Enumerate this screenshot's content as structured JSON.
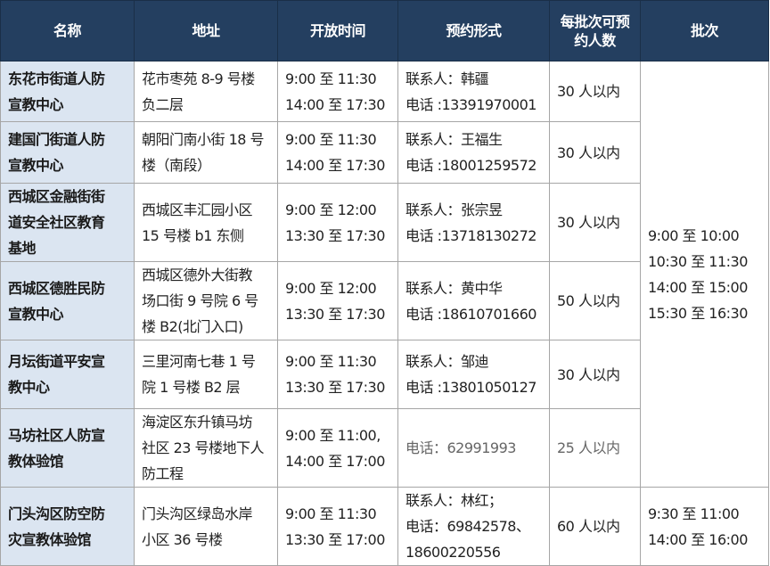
{
  "headers": [
    "名称",
    "地址",
    "开放时间",
    "预约形式",
    "每批次可预\n约人数",
    "批次"
  ],
  "rows": [
    {
      "name": "东花市街道人防\n宣教中心",
      "address": "花市枣苑 8-9 号楼\n负二层",
      "hours": "9:00 至 11:30\n14:00 至 17:30",
      "booking": "联系人：韩疆\n电话 :13391970001",
      "capacity": "30 人以内"
    },
    {
      "name": "建国门街道人防\n宣教中心",
      "address": "朝阳门南小街 18 号\n楼（南段）",
      "hours": "9:00 至 11:30\n14:00 至 17:30",
      "booking": "联系人：王福生\n电话 :18001259572",
      "capacity": "30 人以内"
    },
    {
      "name": "西城区金融街街\n道安全社区教育\n基地",
      "address": "西城区丰汇园小区\n15 号楼 b1 东侧",
      "hours": "9:00 至 12:00\n13:30 至 17:30",
      "booking": "联系人：张宗昱\n电话 :13718130272",
      "capacity": "30 人以内"
    },
    {
      "name": "西城区德胜民防\n宣教中心",
      "address": "西城区德外大街教\n场口街 9 号院 6 号\n楼 B2(北门入口)",
      "hours": "9:00 至 12:00\n13:30 至 17:30",
      "booking": "联系人：黄中华\n电话 :18610701660",
      "capacity": "50 人以内"
    },
    {
      "name": "月坛街道平安宣\n教中心",
      "address": "三里河南七巷 1 号\n院 1 号楼 B2 层",
      "hours": "9:00 至 11:30\n13:30 至 17:30",
      "booking": "联系人：邹迪\n电话 :13801050127",
      "capacity": "30 人以内"
    },
    {
      "name": "马坊社区人防宣\n教体验馆",
      "address": "海淀区东升镇马坊\n社区 23 号楼地下人\n防工程",
      "hours": "9:00 至 11:00,\n14:00 至 17:00",
      "booking": "电话：62991993",
      "capacity": "25 人以内"
    },
    {
      "name": "门头沟区防空防\n灾宣教体验馆",
      "address": "门头沟区绿岛水岸\n小区 36 号楼",
      "hours": "9:00 至 11:30\n13:30 至 17:00",
      "booking": "联系人：林红；\n电话：69842578、\n18600220556",
      "capacity": "60 人以内"
    }
  ],
  "batches": {
    "shared": "9:00 至 10:00\n10:30 至 11:30\n14:00 至 15:00\n15:30 至 16:30",
    "mentougou": "9:30 至 11:00\n14:00 至 16:00"
  },
  "colors": {
    "header_bg": "#243f60",
    "name_bg": "#dbe5f1"
  }
}
